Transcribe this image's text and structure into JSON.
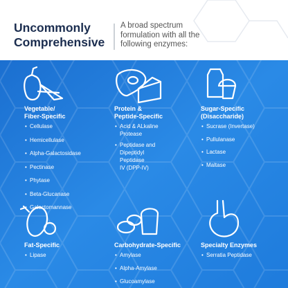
{
  "header": {
    "title_lines": [
      "Uncommonly",
      "Comprehensive"
    ],
    "subtitle_lines": [
      "A broad spectrum",
      "formulation with all the",
      "following enzymes:"
    ]
  },
  "sections": [
    {
      "title_lines": [
        "Vegetable/",
        "Fiber-Specific"
      ],
      "items": [
        [
          "Cellulase"
        ],
        [
          "Hemicellulase"
        ],
        [
          "Alpha-Galactosidase"
        ],
        [
          "Pectinase"
        ],
        [
          "Phytase"
        ],
        [
          "Beta-Glucanase"
        ],
        [
          "Galactomannase"
        ]
      ]
    },
    {
      "title_lines": [
        "Protein &",
        "Peptide-Specific"
      ],
      "items": [
        [
          "Acid & ALkaline",
          "Protease"
        ],
        [
          "Peptidase and",
          "Dipeptidyl",
          "Peptidase",
          "IV (DPP-IV)"
        ]
      ]
    },
    {
      "title_lines": [
        "Sugar-Specific",
        "(Disaccharide)"
      ],
      "items": [
        [
          "Sucrase (Invertase)"
        ],
        [
          "Pullulanase"
        ],
        [
          "Lactase"
        ],
        [
          "Maltase"
        ]
      ]
    },
    {
      "title_lines": [
        "Fat-Specific"
      ],
      "items": [
        [
          "Lipase"
        ]
      ]
    },
    {
      "title_lines": [
        "Carbohydrate-Specific"
      ],
      "items": [
        [
          "Amylase"
        ],
        [
          "Alpha-Amylase"
        ],
        [
          "Glucoamylase"
        ]
      ]
    },
    {
      "title_lines": [
        "Specialty Enzymes"
      ],
      "items": [
        [
          "Serratia Peptidase"
        ]
      ]
    }
  ]
}
